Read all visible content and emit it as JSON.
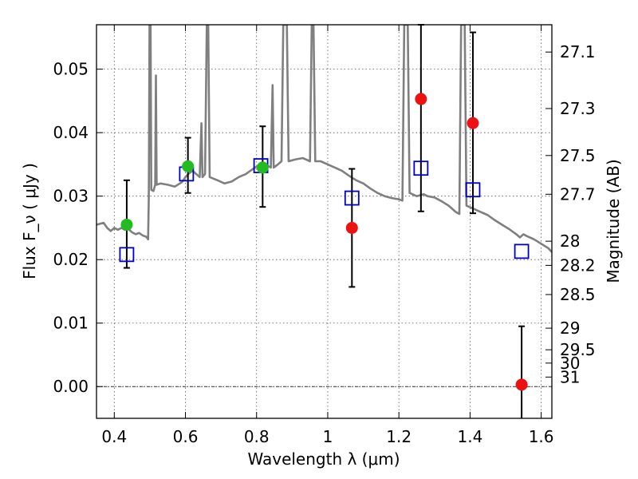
{
  "chart_data": {
    "type": "scatter",
    "xlabel": "Wavelength  λ (μm)",
    "ylabel": "Flux  F_ν  ( μJy )",
    "ylabel_right": "Magnitude (AB)",
    "xlim": [
      0.35,
      1.63
    ],
    "ylim": [
      -0.005,
      0.057
    ],
    "grid": true,
    "x_ticks": [
      0.4,
      0.6,
      0.8,
      1.0,
      1.2,
      1.4,
      1.6
    ],
    "x_tick_labels": [
      "0.4",
      "0.6",
      "0.8",
      "1",
      "1.2",
      "1.4",
      "1.6"
    ],
    "y_ticks": [
      0.0,
      0.01,
      0.02,
      0.03,
      0.04,
      0.05
    ],
    "y_tick_labels": [
      "0.00",
      "0.01",
      "0.02",
      "0.03",
      "0.04",
      "0.05"
    ],
    "right_ticks": [
      {
        "label": "27.1",
        "flux": 0.0527
      },
      {
        "label": "27.3",
        "flux": 0.0438
      },
      {
        "label": "27.5",
        "flux": 0.0364
      },
      {
        "label": "27.7",
        "flux": 0.0303
      },
      {
        "label": "28",
        "flux": 0.0229
      },
      {
        "label": "28.2",
        "flux": 0.0191
      },
      {
        "label": "28.5",
        "flux": 0.0145
      },
      {
        "label": "29",
        "flux": 0.0092
      },
      {
        "label": "29.5",
        "flux": 0.0058
      },
      {
        "label": "30",
        "flux": 0.0037
      },
      {
        "label": "31",
        "flux": 0.0015
      }
    ],
    "series": [
      {
        "kind": "spectrum",
        "color": "#7f7f7f",
        "points": [
          [
            0.35,
            0.0255
          ],
          [
            0.37,
            0.0258
          ],
          [
            0.38,
            0.025
          ],
          [
            0.39,
            0.0245
          ],
          [
            0.4,
            0.025
          ],
          [
            0.41,
            0.0247
          ],
          [
            0.42,
            0.025
          ],
          [
            0.43,
            0.0247
          ],
          [
            0.44,
            0.0248
          ],
          [
            0.45,
            0.0243
          ],
          [
            0.46,
            0.024
          ],
          [
            0.47,
            0.0242
          ],
          [
            0.48,
            0.0238
          ],
          [
            0.49,
            0.0236
          ],
          [
            0.495,
            0.0232
          ],
          [
            0.497,
            0.03
          ],
          [
            0.499,
            0.057
          ],
          [
            0.502,
            0.057
          ],
          [
            0.504,
            0.031
          ],
          [
            0.51,
            0.0308
          ],
          [
            0.515,
            0.0318
          ],
          [
            0.517,
            0.049
          ],
          [
            0.519,
            0.0318
          ],
          [
            0.53,
            0.032
          ],
          [
            0.55,
            0.0318
          ],
          [
            0.57,
            0.0315
          ],
          [
            0.59,
            0.0322
          ],
          [
            0.6,
            0.033
          ],
          [
            0.61,
            0.0336
          ],
          [
            0.62,
            0.034
          ],
          [
            0.63,
            0.0335
          ],
          [
            0.64,
            0.033
          ],
          [
            0.645,
            0.0415
          ],
          [
            0.648,
            0.033
          ],
          [
            0.655,
            0.0335
          ],
          [
            0.66,
            0.057
          ],
          [
            0.664,
            0.057
          ],
          [
            0.668,
            0.033
          ],
          [
            0.69,
            0.0325
          ],
          [
            0.71,
            0.032
          ],
          [
            0.73,
            0.0323
          ],
          [
            0.75,
            0.033
          ],
          [
            0.77,
            0.0335
          ],
          [
            0.79,
            0.0343
          ],
          [
            0.81,
            0.035
          ],
          [
            0.83,
            0.0348
          ],
          [
            0.84,
            0.0345
          ],
          [
            0.845,
            0.0475
          ],
          [
            0.848,
            0.0345
          ],
          [
            0.86,
            0.035
          ],
          [
            0.87,
            0.0355
          ],
          [
            0.875,
            0.057
          ],
          [
            0.885,
            0.057
          ],
          [
            0.89,
            0.0355
          ],
          [
            0.91,
            0.0358
          ],
          [
            0.93,
            0.036
          ],
          [
            0.95,
            0.0355
          ],
          [
            0.955,
            0.057
          ],
          [
            0.96,
            0.057
          ],
          [
            0.965,
            0.0355
          ],
          [
            0.98,
            0.0355
          ],
          [
            1.0,
            0.035
          ],
          [
            1.02,
            0.0345
          ],
          [
            1.04,
            0.034
          ],
          [
            1.06,
            0.0332
          ],
          [
            1.08,
            0.0325
          ],
          [
            1.1,
            0.032
          ],
          [
            1.12,
            0.0312
          ],
          [
            1.14,
            0.0305
          ],
          [
            1.16,
            0.03
          ],
          [
            1.18,
            0.0297
          ],
          [
            1.2,
            0.0295
          ],
          [
            1.21,
            0.0293
          ],
          [
            1.215,
            0.057
          ],
          [
            1.225,
            0.057
          ],
          [
            1.23,
            0.0305
          ],
          [
            1.25,
            0.03
          ],
          [
            1.27,
            0.0303
          ],
          [
            1.28,
            0.03
          ],
          [
            1.3,
            0.0298
          ],
          [
            1.32,
            0.0292
          ],
          [
            1.34,
            0.0285
          ],
          [
            1.36,
            0.0275
          ],
          [
            1.37,
            0.0272
          ],
          [
            1.375,
            0.057
          ],
          [
            1.385,
            0.057
          ],
          [
            1.39,
            0.0285
          ],
          [
            1.41,
            0.028
          ],
          [
            1.43,
            0.0275
          ],
          [
            1.45,
            0.027
          ],
          [
            1.47,
            0.0262
          ],
          [
            1.49,
            0.0255
          ],
          [
            1.51,
            0.0248
          ],
          [
            1.53,
            0.024
          ],
          [
            1.54,
            0.0235
          ],
          [
            1.55,
            0.024
          ],
          [
            1.56,
            0.0237
          ],
          [
            1.58,
            0.0232
          ],
          [
            1.6,
            0.0225
          ],
          [
            1.62,
            0.0218
          ],
          [
            1.63,
            0.0212
          ]
        ]
      },
      {
        "kind": "model-boxes",
        "color": "#0000cc",
        "points": [
          [
            0.435,
            0.0208
          ],
          [
            0.603,
            0.0335
          ],
          [
            0.812,
            0.0348
          ],
          [
            1.068,
            0.0297
          ],
          [
            1.262,
            0.0344
          ],
          [
            1.408,
            0.031
          ],
          [
            1.545,
            0.0213
          ]
        ]
      },
      {
        "kind": "green-points",
        "color": "#22bb22",
        "points": [
          [
            0.435,
            0.0255
          ],
          [
            0.607,
            0.0347
          ],
          [
            0.817,
            0.0345
          ]
        ]
      },
      {
        "kind": "red-points",
        "color": "#ee1111",
        "points": [
          [
            1.068,
            0.025
          ],
          [
            1.262,
            0.0453
          ],
          [
            1.408,
            0.0415
          ],
          [
            1.545,
            0.0003
          ]
        ]
      },
      {
        "kind": "errorbars",
        "color": "#000000",
        "bars": [
          {
            "x": 0.435,
            "low": 0.0187,
            "high": 0.0325
          },
          {
            "x": 0.607,
            "low": 0.0305,
            "high": 0.0392
          },
          {
            "x": 0.817,
            "low": 0.0283,
            "high": 0.041
          },
          {
            "x": 1.068,
            "low": 0.0157,
            "high": 0.0343
          },
          {
            "x": 1.262,
            "low": 0.0276,
            "high": 0.057
          },
          {
            "x": 1.408,
            "low": 0.0273,
            "high": 0.0558
          },
          {
            "x": 1.545,
            "low": -0.006,
            "high": 0.0095
          }
        ]
      }
    ]
  }
}
